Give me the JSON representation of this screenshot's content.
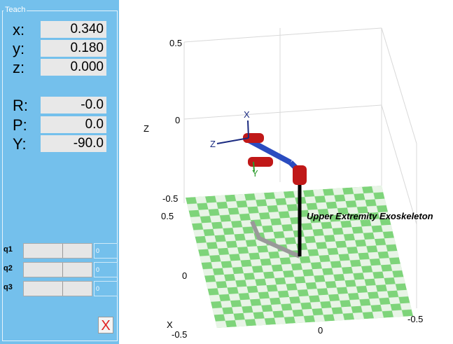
{
  "panel": {
    "title": "Teach",
    "position": [
      {
        "label": "x:",
        "value": "0.340"
      },
      {
        "label": "y:",
        "value": "0.180"
      },
      {
        "label": "z:",
        "value": "0.000"
      }
    ],
    "orientation": [
      {
        "label": "R:",
        "value": "-0.0"
      },
      {
        "label": "P:",
        "value": "0.0"
      },
      {
        "label": "Y:",
        "value": "-90.0"
      }
    ],
    "joints": [
      {
        "label": "q1",
        "value": "0"
      },
      {
        "label": "q2",
        "value": "0"
      },
      {
        "label": "q3",
        "value": "0"
      }
    ],
    "close": "X"
  },
  "plot": {
    "z_label": "Z",
    "z_ticks": [
      "0.5",
      "0",
      "-0.5"
    ],
    "x_label": "X",
    "x_ticks": [
      "0.5",
      "0",
      "-0.5"
    ],
    "y_ticks": [
      "0",
      "-0.5"
    ],
    "robot_name": "Upper Extremity Exoskeleton",
    "frame_labels": [
      "X",
      "Y",
      "Z"
    ]
  }
}
